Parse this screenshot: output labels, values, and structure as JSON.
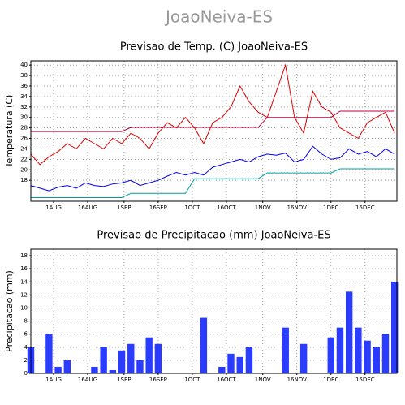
{
  "title": "JoaoNeiva-ES",
  "chart_data": [
    {
      "type": "line",
      "title": "Previsao de Temp. (C) JoaoNeiva-ES",
      "ylabel": "Temperatura (C)",
      "x": [
        203,
        207,
        211,
        215,
        219,
        223,
        227,
        231,
        235,
        239,
        243,
        247,
        251,
        255,
        259,
        263,
        267,
        271,
        275,
        279,
        283,
        287,
        291,
        295,
        299,
        303,
        307,
        311,
        315,
        319,
        323,
        327,
        331,
        335,
        339,
        343,
        347,
        351,
        355,
        359,
        363
      ],
      "xlim": [
        203,
        364
      ],
      "xticks": [
        {
          "value": 213,
          "label": "1AUG"
        },
        {
          "value": 228,
          "label": "16AUG"
        },
        {
          "value": 244,
          "label": "1SEP"
        },
        {
          "value": 259,
          "label": "16SEP"
        },
        {
          "value": 274,
          "label": "1OCT"
        },
        {
          "value": 289,
          "label": "16OCT"
        },
        {
          "value": 305,
          "label": "1NOV"
        },
        {
          "value": 320,
          "label": "16NOV"
        },
        {
          "value": 335,
          "label": "1DEC"
        },
        {
          "value": 350,
          "label": "16DEC"
        }
      ],
      "ylim": [
        14,
        40.8
      ],
      "yticks": [
        18,
        20,
        22,
        24,
        26,
        28,
        30,
        32,
        34,
        36,
        38,
        40
      ],
      "grid": true,
      "series": [
        {
          "color": "#e00000",
          "values": [
            23,
            21,
            22.5,
            23.5,
            25,
            24,
            26,
            25,
            24,
            26,
            25,
            27,
            26,
            24,
            27,
            29,
            28,
            30,
            28,
            25,
            29,
            30,
            32,
            36,
            33,
            31,
            30,
            35,
            40,
            30,
            27,
            35,
            32,
            31,
            28,
            27,
            26,
            29,
            30,
            31,
            27
          ]
        },
        {
          "color": "#0000ee",
          "values": [
            17,
            16.5,
            16,
            16.7,
            17,
            16.5,
            17.5,
            17,
            16.8,
            17.3,
            17.5,
            18,
            17,
            17.5,
            18,
            18.8,
            19.5,
            19,
            19.5,
            19,
            20.5,
            21,
            21.5,
            22,
            21.5,
            22.5,
            23,
            22.8,
            23.2,
            21.5,
            22,
            24.5,
            23,
            22,
            22.3,
            24,
            23,
            23.5,
            22.5,
            24,
            23
          ]
        },
        {
          "color": "#c0003c",
          "values": [
            27.3,
            27.3,
            27.3,
            27.3,
            27.3,
            27.3,
            27.3,
            27.3,
            27.3,
            27.3,
            27.3,
            28.1,
            28.1,
            28.1,
            28.1,
            28.1,
            28.1,
            28.1,
            28.1,
            28.1,
            28.1,
            28.1,
            28.1,
            28.1,
            28.1,
            28.1,
            30,
            30,
            30,
            30,
            30,
            30,
            30,
            30,
            31.2,
            31.2,
            31.2,
            31.2,
            31.2,
            31.2,
            31.2
          ]
        },
        {
          "color": "#00a0a0",
          "values": [
            14.7,
            14.7,
            14.7,
            14.7,
            14.7,
            14.7,
            14.7,
            14.7,
            14.7,
            14.7,
            14.7,
            15.5,
            15.5,
            15.5,
            15.5,
            15.5,
            15.5,
            15.5,
            18.3,
            18.3,
            18.3,
            18.3,
            18.3,
            18.3,
            18.3,
            18.3,
            19.4,
            19.4,
            19.4,
            19.4,
            19.4,
            19.4,
            19.4,
            19.4,
            20.2,
            20.2,
            20.2,
            20.2,
            20.2,
            20.2,
            20.2
          ]
        }
      ]
    },
    {
      "type": "bar",
      "title": "Previsao de Precipitacao (mm) JoaoNeiva-ES",
      "ylabel": "Precipitacao (mm)",
      "x": [
        203,
        207,
        211,
        215,
        219,
        223,
        227,
        231,
        235,
        239,
        243,
        247,
        251,
        255,
        259,
        263,
        267,
        271,
        275,
        279,
        283,
        287,
        291,
        295,
        299,
        303,
        307,
        311,
        315,
        319,
        323,
        327,
        331,
        335,
        339,
        343,
        347,
        351,
        355,
        359,
        363
      ],
      "xlim": [
        203,
        364
      ],
      "xticks": [
        {
          "value": 213,
          "label": "1AUG"
        },
        {
          "value": 228,
          "label": "16AUG"
        },
        {
          "value": 244,
          "label": "1SEP"
        },
        {
          "value": 259,
          "label": "16SEP"
        },
        {
          "value": 274,
          "label": "1OCT"
        },
        {
          "value": 289,
          "label": "16OCT"
        },
        {
          "value": 305,
          "label": "1NOV"
        },
        {
          "value": 320,
          "label": "16NOV"
        },
        {
          "value": 335,
          "label": "1DEC"
        },
        {
          "value": 350,
          "label": "16DEC"
        }
      ],
      "ylim": [
        0,
        19
      ],
      "yticks": [
        0,
        2,
        4,
        6,
        8,
        10,
        12,
        14,
        16,
        18
      ],
      "grid": true,
      "color": "#2a3cff",
      "values": [
        4,
        0,
        6,
        1,
        2,
        0,
        0,
        1,
        4,
        0.5,
        3.5,
        4.5,
        2,
        5.5,
        4.5,
        0,
        0,
        0,
        0,
        8.5,
        0,
        1,
        3,
        2.5,
        4,
        0,
        0,
        0,
        7,
        0,
        4.5,
        0,
        0,
        5.5,
        7,
        12.5,
        7,
        5,
        4,
        6,
        14
      ]
    }
  ]
}
